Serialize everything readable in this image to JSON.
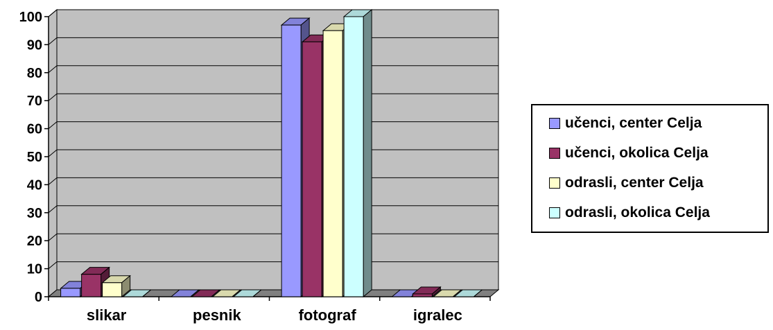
{
  "chart_data": {
    "type": "bar",
    "categories": [
      "slikar",
      "pesnik",
      "fotograf",
      "igralec"
    ],
    "series": [
      {
        "name": "učenci, center Celja",
        "values": [
          3,
          0,
          97,
          0
        ]
      },
      {
        "name": "učenci, okolica Celja",
        "values": [
          8,
          0,
          91,
          1
        ]
      },
      {
        "name": "odrasli, center Celja",
        "values": [
          5,
          0,
          95,
          0
        ]
      },
      {
        "name": "odrasli, okolica Celja",
        "values": [
          0,
          0,
          100,
          0
        ]
      }
    ],
    "ylim": [
      0,
      100
    ],
    "yticks": [
      0,
      10,
      20,
      30,
      40,
      50,
      60,
      70,
      80,
      90,
      100
    ],
    "grid": true,
    "legend_position": "right",
    "style": "3d-clustered-column"
  },
  "colors": {
    "series": [
      "#9999FF",
      "#993366",
      "#FFFFCC",
      "#CCFFFF"
    ],
    "wall": "#C0C0C0",
    "floor": "#808080",
    "gridline": "#000000"
  }
}
